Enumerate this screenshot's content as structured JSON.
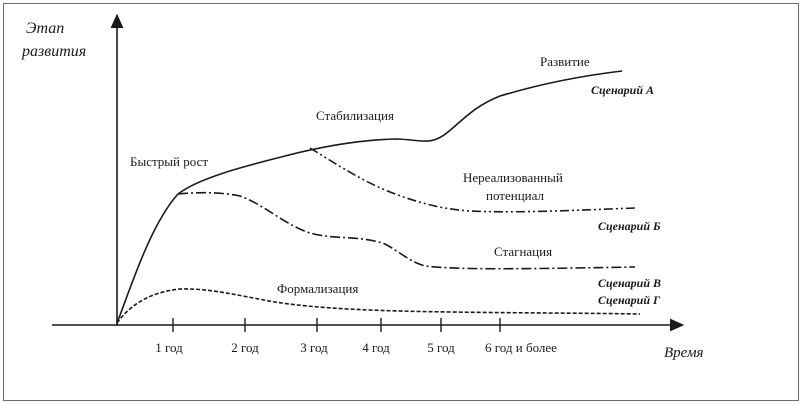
{
  "diagram": {
    "y_axis_label_line1": "Этап",
    "y_axis_label_line2": "развития",
    "x_axis_label": "Время",
    "x_ticks": [
      "1 год",
      "2 год",
      "3 год",
      "4 год",
      "5 год",
      "6 год и более"
    ],
    "stages": {
      "rapid_growth": "Быстрый рост",
      "stabilization": "Стабилизация",
      "development": "Развитие",
      "unrealized_line1": "Нереализованный",
      "unrealized_line2": "потенциал",
      "stagnation": "Стагнация",
      "formalization": "Формализация"
    },
    "scenarios": {
      "a": "Сценарий А",
      "b": "Сценарий Б",
      "v": "Сценарий В",
      "g": "Сценарий Г"
    }
  }
}
